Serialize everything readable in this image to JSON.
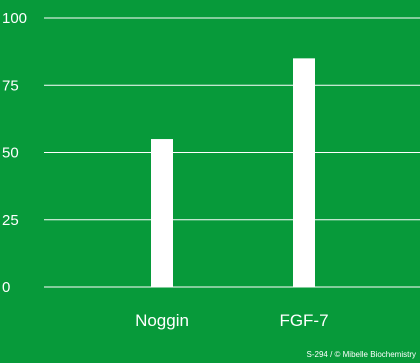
{
  "chart_data": {
    "type": "bar",
    "categories": [
      "Noggin",
      "FGF-7"
    ],
    "values": [
      55,
      85
    ],
    "ylim": [
      0,
      100
    ],
    "yticks": [
      0,
      25,
      50,
      75,
      100
    ],
    "grid": true,
    "title": "",
    "xlabel": "",
    "ylabel": ""
  },
  "colors": {
    "background": "#079a3a",
    "bar": "#ffffff",
    "grid": "#ffffff",
    "text": "#ffffff"
  },
  "footer": "S-294 / © Mibelle Biochemistry"
}
